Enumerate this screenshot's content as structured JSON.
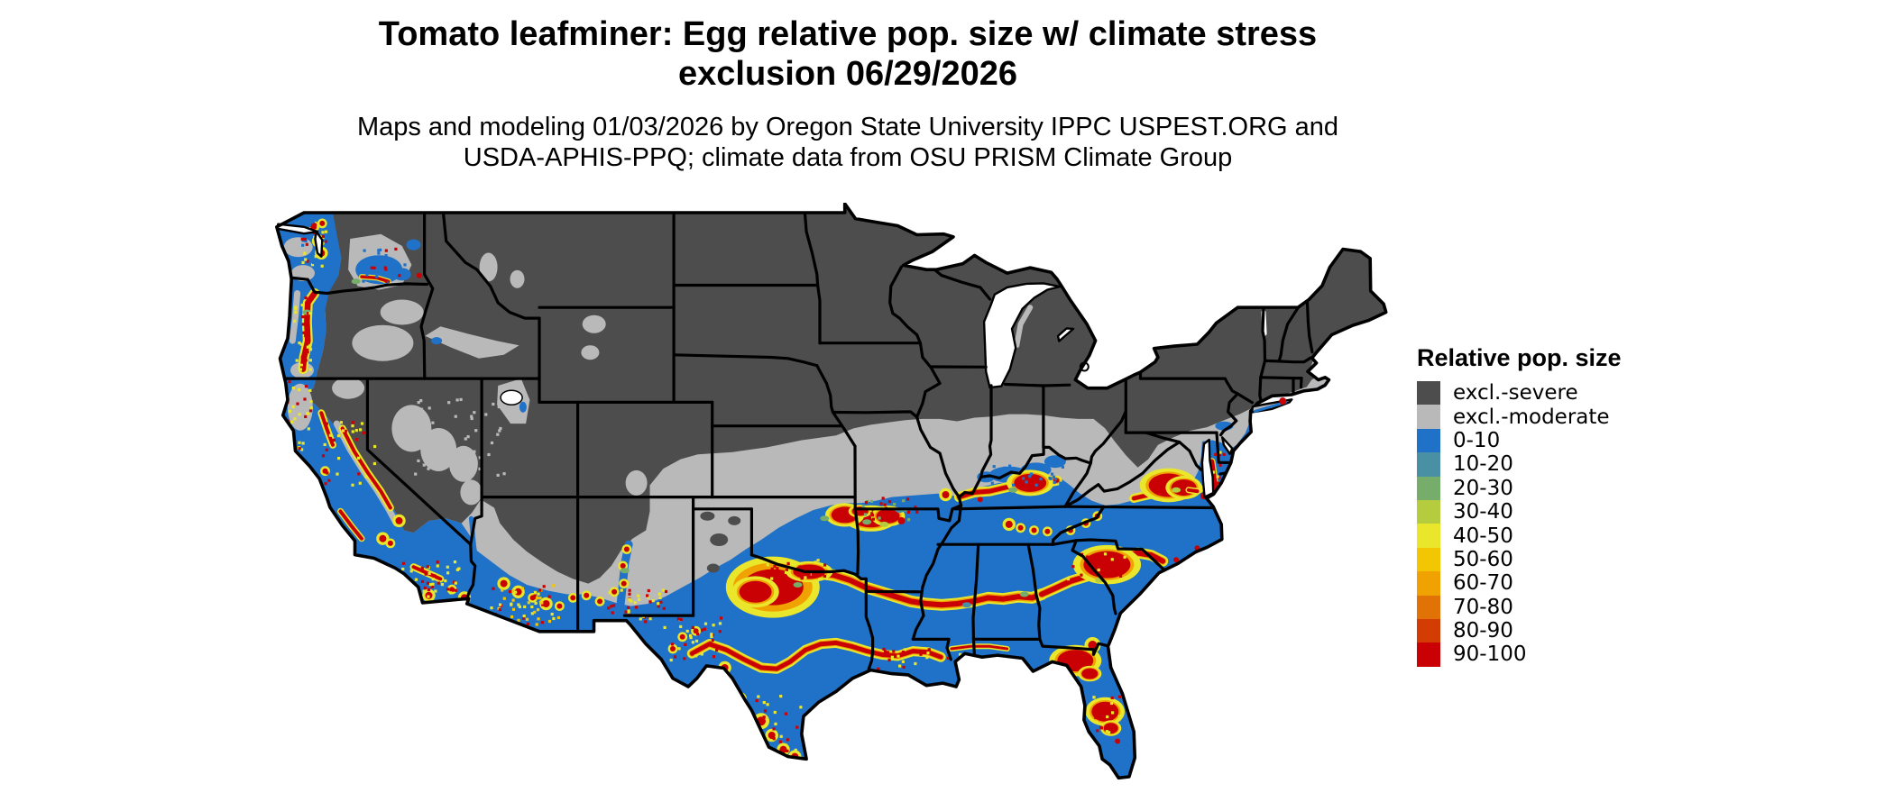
{
  "figure": {
    "title_line1": "Tomato leafminer: Egg relative pop. size w/ climate stress",
    "title_line2": "exclusion 06/29/2026",
    "subtitle_line1": "Maps and modeling 01/03/2026 by Oregon State University IPPC USPEST.ORG and",
    "subtitle_line2": "USDA-APHIS-PPQ; climate data from OSU PRISM Climate Group"
  },
  "legend": {
    "title": "Relative pop. size",
    "entries": [
      {
        "label": "excl.-severe",
        "color": "#4d4d4d"
      },
      {
        "label": "excl.-moderate",
        "color": "#b9b9b9"
      },
      {
        "label": "0-10",
        "color": "#1f72c8"
      },
      {
        "label": "10-20",
        "color": "#4a90a4"
      },
      {
        "label": "20-30",
        "color": "#77ad6a"
      },
      {
        "label": "30-40",
        "color": "#b5cc3f"
      },
      {
        "label": "40-50",
        "color": "#e9e62b"
      },
      {
        "label": "50-60",
        "color": "#f2c602"
      },
      {
        "label": "60-70",
        "color": "#f0a202"
      },
      {
        "label": "70-80",
        "color": "#e07206"
      },
      {
        "label": "80-90",
        "color": "#d33d03"
      },
      {
        "label": "90-100",
        "color": "#c90105"
      }
    ]
  },
  "map": {
    "region": "Contiguous United States",
    "type": "raster choropleth with state boundaries",
    "outline_color": "#000000",
    "background_color": "#ffffff"
  }
}
